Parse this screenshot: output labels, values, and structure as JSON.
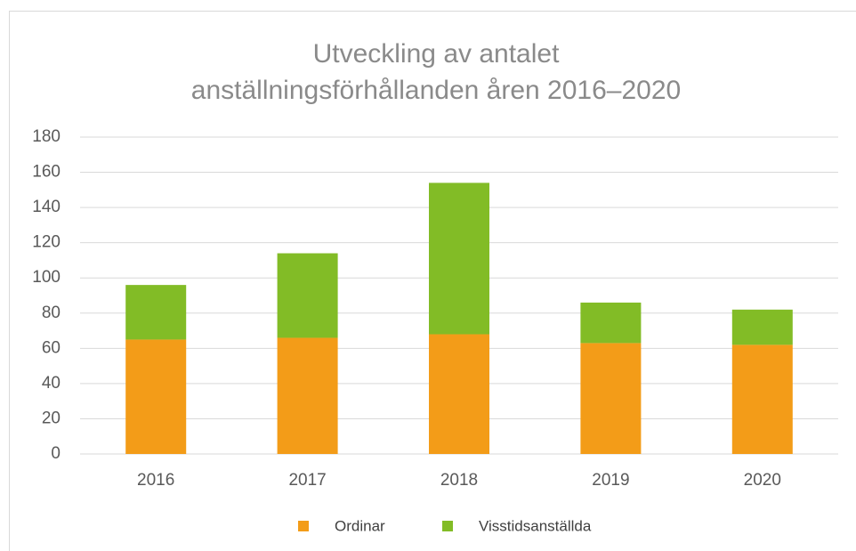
{
  "chart_data": {
    "type": "stacked_bar",
    "title": [
      "Utveckling av antalet",
      "anställningsförhållanden åren 2016–2020"
    ],
    "categories": [
      "2016",
      "2017",
      "2018",
      "2019",
      "2020"
    ],
    "series": [
      {
        "name": "Ordinar",
        "color": "#f39c18",
        "values": [
          65,
          66,
          68,
          63,
          62
        ]
      },
      {
        "name": "Visstidsanställda",
        "color": "#82bc26",
        "values": [
          31,
          48,
          86,
          23,
          20
        ]
      }
    ],
    "ylim": [
      0,
      180
    ],
    "yticks": [
      0,
      20,
      40,
      60,
      80,
      100,
      120,
      140,
      160,
      180
    ],
    "grid": true,
    "legend": "bottom"
  }
}
